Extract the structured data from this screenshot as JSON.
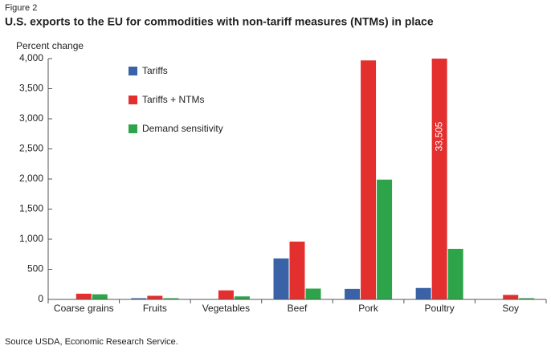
{
  "chart_data": {
    "type": "bar",
    "figure_label": "Figure 2",
    "title": "U.S. exports to the EU for commodities with non-tariff measures (NTMs) in place",
    "y_label": "Percent change",
    "source": "Source USDA, Economic Research Service.",
    "categories": [
      "Coarse grains",
      "Fruits",
      "Vegetables",
      "Beef",
      "Pork",
      "Poultry",
      "Soy"
    ],
    "series": [
      {
        "name": "Tariffs",
        "color": "#3a62a6",
        "values": [
          2,
          20,
          5,
          680,
          175,
          190,
          5
        ]
      },
      {
        "name": "Tariffs + NTMs",
        "color": "#e3302f",
        "values": [
          95,
          60,
          150,
          960,
          3970,
          33505,
          75
        ],
        "value_labels": [
          null,
          null,
          null,
          null,
          null,
          "33,505",
          null
        ]
      },
      {
        "name": "Demand sensitivity",
        "color": "#2ea44a",
        "values": [
          85,
          20,
          50,
          180,
          1990,
          840,
          20
        ]
      }
    ],
    "ylim": [
      0,
      4000
    ],
    "yticks": [
      0,
      {
        "value": 500,
        "label": "500"
      },
      {
        "value": 1000,
        "label": "1,000"
      },
      {
        "value": 1500,
        "label": "1,500"
      },
      {
        "value": 2000,
        "label": "2,000"
      },
      {
        "value": 2500,
        "label": "2,500"
      },
      {
        "value": 3000,
        "label": "3,000"
      },
      {
        "value": 3500,
        "label": "3,500"
      },
      {
        "value": 4000,
        "label": "4,000"
      }
    ],
    "legend": "upper left",
    "grid": false
  }
}
